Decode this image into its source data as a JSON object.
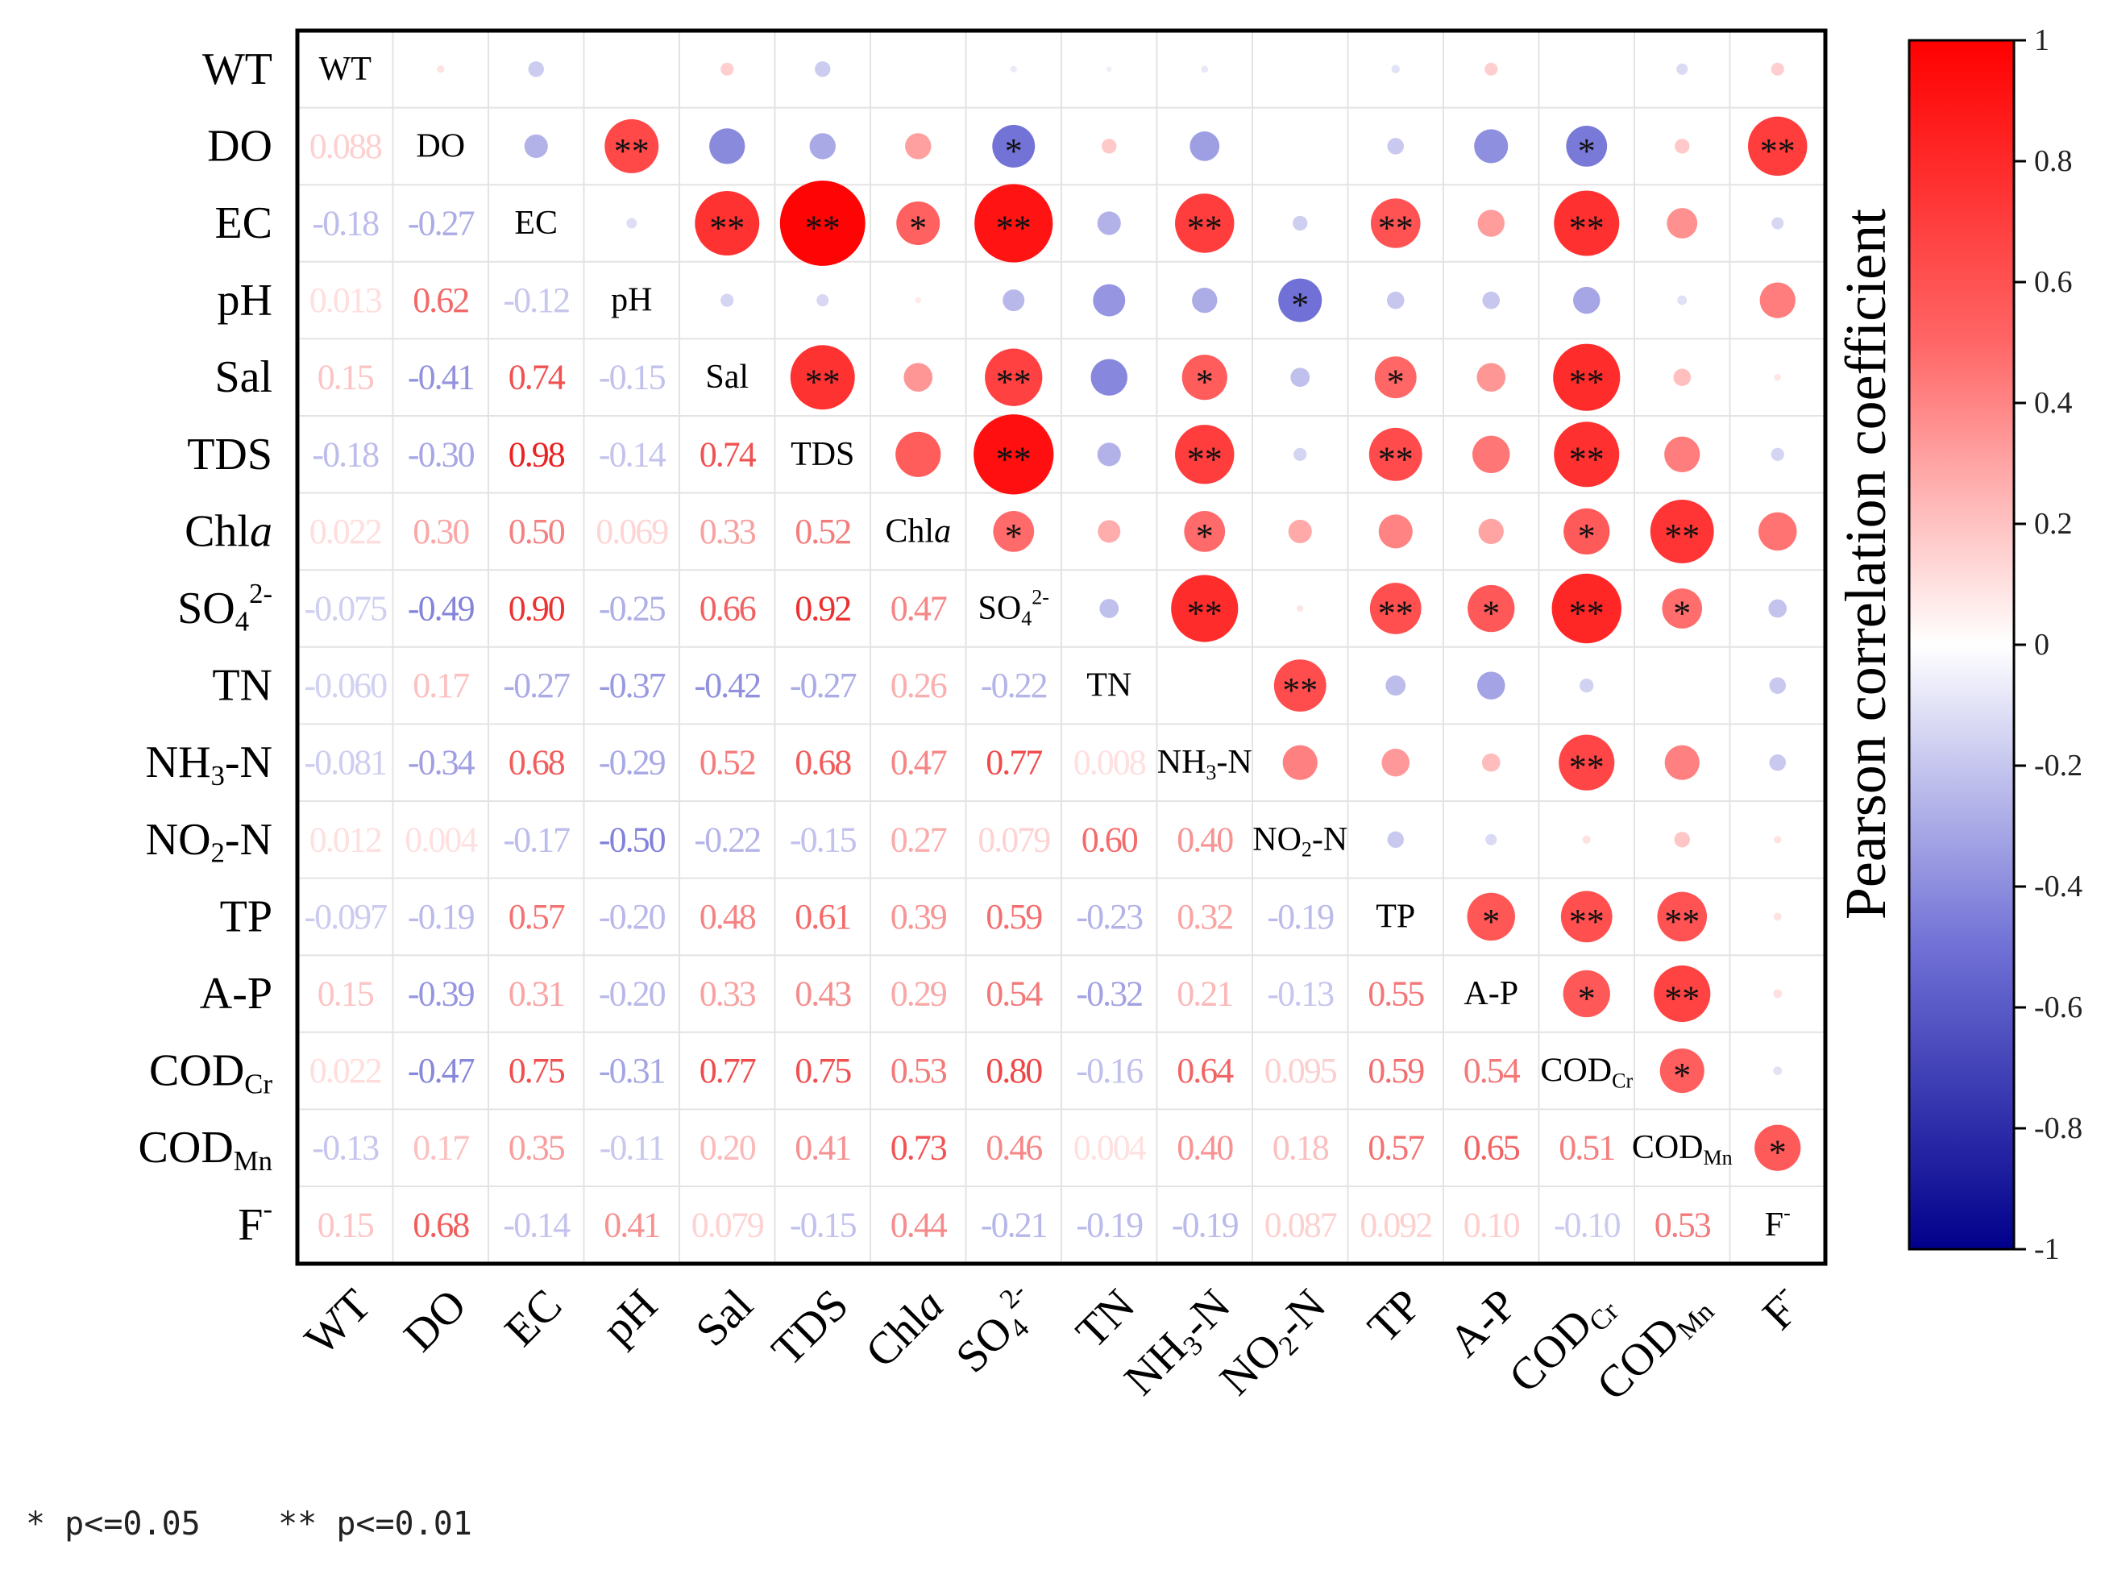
{
  "chart_data": {
    "type": "heatmap",
    "variables": [
      {
        "label": "WT"
      },
      {
        "label": "DO"
      },
      {
        "label": "EC"
      },
      {
        "label": "pH"
      },
      {
        "label": "Sal"
      },
      {
        "label": "TDS"
      },
      {
        "label": "Chl",
        "italic": "a"
      },
      {
        "label": "SO",
        "sub": "4",
        "sup": "2-"
      },
      {
        "label": "TN"
      },
      {
        "label": "NH",
        "sub": "3",
        "tail": "-N"
      },
      {
        "label": "NO",
        "sub": "2",
        "tail": "-N"
      },
      {
        "label": "TP"
      },
      {
        "label": "A-P"
      },
      {
        "label": "COD",
        "sub": "Cr"
      },
      {
        "label": "COD",
        "sub": "Mn"
      },
      {
        "label": "F",
        "sup": "-"
      }
    ],
    "lower_values": [
      [],
      [
        "0.088"
      ],
      [
        "-0.18",
        "-0.27"
      ],
      [
        "0.013",
        "0.62",
        "-0.12"
      ],
      [
        "0.15",
        "-0.41",
        "0.74",
        "-0.15"
      ],
      [
        "-0.18",
        "-0.30",
        "0.98",
        "-0.14",
        "0.74"
      ],
      [
        "0.022",
        "0.30",
        "0.50",
        "0.069",
        "0.33",
        "0.52"
      ],
      [
        "-0.075",
        "-0.49",
        "0.90",
        "-0.25",
        "0.66",
        "0.92",
        "0.47"
      ],
      [
        "-0.060",
        "0.17",
        "-0.27",
        "-0.37",
        "-0.42",
        "-0.27",
        "0.26",
        "-0.22"
      ],
      [
        "-0.081",
        "-0.34",
        "0.68",
        "-0.29",
        "0.52",
        "0.68",
        "0.47",
        "0.77",
        "0.008"
      ],
      [
        "0.012",
        "0.004",
        "-0.17",
        "-0.50",
        "-0.22",
        "-0.15",
        "0.27",
        "0.079",
        "0.60",
        "0.40"
      ],
      [
        "-0.097",
        "-0.19",
        "0.57",
        "-0.20",
        "0.48",
        "0.61",
        "0.39",
        "0.59",
        "-0.23",
        "0.32",
        "-0.19"
      ],
      [
        "0.15",
        "-0.39",
        "0.31",
        "-0.20",
        "0.33",
        "0.43",
        "0.29",
        "0.54",
        "-0.32",
        "0.21",
        "-0.13",
        "0.55"
      ],
      [
        "0.022",
        "-0.47",
        "0.75",
        "-0.31",
        "0.77",
        "0.75",
        "0.53",
        "0.80",
        "-0.16",
        "0.64",
        "0.095",
        "0.59",
        "0.54"
      ],
      [
        "-0.13",
        "0.17",
        "0.35",
        "-0.11",
        "0.20",
        "0.41",
        "0.73",
        "0.46",
        "0.004",
        "0.40",
        "0.18",
        "0.57",
        "0.65",
        "0.51"
      ],
      [
        "0.15",
        "0.68",
        "-0.14",
        "0.41",
        "0.079",
        "-0.15",
        "0.44",
        "-0.21",
        "-0.19",
        "-0.19",
        "0.087",
        "0.092",
        "0.10",
        "-0.10",
        "0.53"
      ]
    ],
    "significance": [
      [],
      [
        ""
      ],
      [
        "",
        ""
      ],
      [
        "",
        "**",
        ""
      ],
      [
        "",
        "",
        "**",
        ""
      ],
      [
        "",
        "",
        "**",
        "",
        "**"
      ],
      [
        "",
        "",
        "*",
        "",
        "",
        ""
      ],
      [
        "",
        "*",
        "**",
        "",
        "**",
        "**",
        "*"
      ],
      [
        "",
        "",
        "",
        "",
        "",
        "",
        "",
        ""
      ],
      [
        "",
        "",
        "**",
        "",
        "*",
        "**",
        "*",
        "**",
        ""
      ],
      [
        "",
        "",
        "",
        "*",
        "",
        "",
        "",
        "",
        "**",
        ""
      ],
      [
        "",
        "",
        "**",
        "",
        "*",
        "**",
        "",
        "**",
        "",
        "",
        ""
      ],
      [
        "",
        "",
        "",
        "",
        "",
        "",
        "",
        "*",
        "",
        "",
        "",
        "*"
      ],
      [
        "",
        "*",
        "**",
        "",
        "**",
        "**",
        "*",
        "**",
        "",
        "**",
        "",
        "**",
        "*"
      ],
      [
        "",
        "",
        "",
        "",
        "",
        "",
        "**",
        "*",
        "",
        "",
        "",
        "**",
        "**",
        "*"
      ],
      [
        "",
        "**",
        "",
        "",
        "",
        "",
        "",
        "",
        "",
        "",
        "",
        "",
        "",
        "",
        "*"
      ]
    ],
    "colorbar": {
      "label": "Pearson correlation coefficient",
      "ticks": [
        "1",
        "0.8",
        "0.6",
        "0.4",
        "0.2",
        "0",
        "-0.2",
        "-0.4",
        "-0.6",
        "-0.8",
        "-1"
      ],
      "range": [
        -1,
        1
      ],
      "colors": {
        "negative": "#00008b",
        "mid_low": "#6f6fd6",
        "zero": "#ffffff",
        "mid_high": "#ff5c5c",
        "positive": "#ff0000"
      }
    },
    "footnote": "* p<=0.05    ** p<=0.01"
  }
}
